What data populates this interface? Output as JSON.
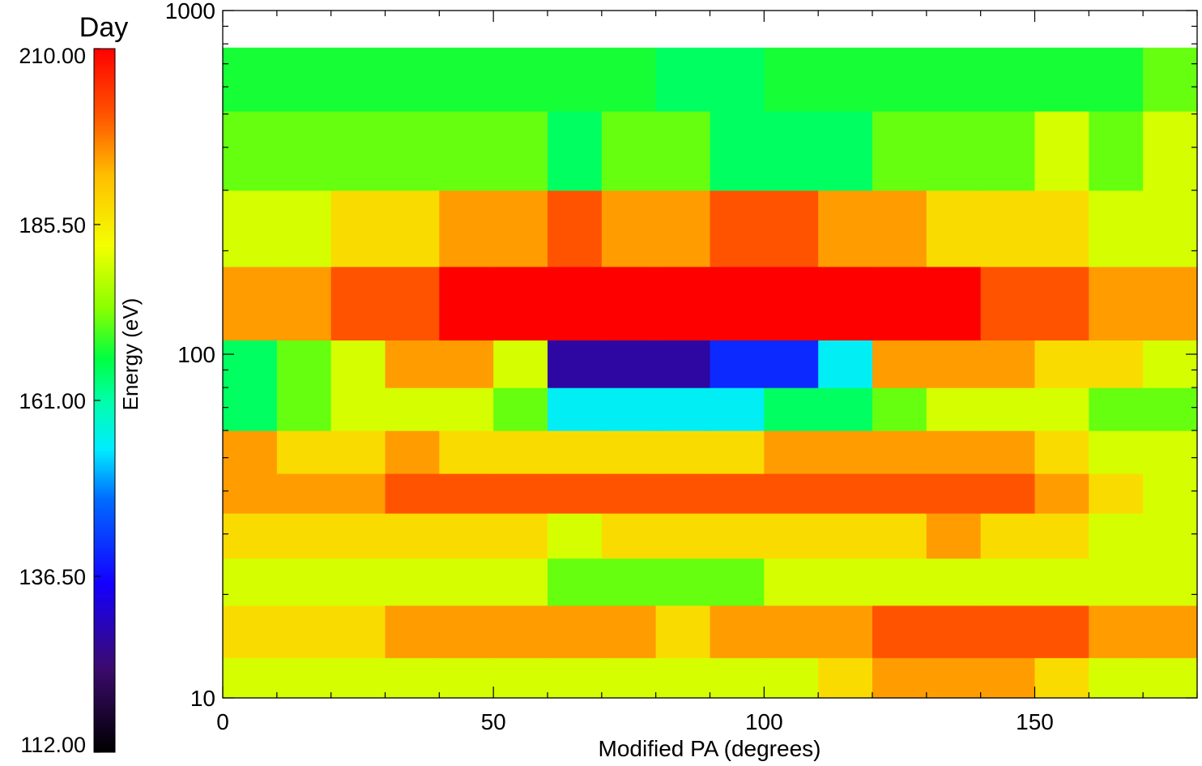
{
  "chart_data": {
    "type": "heatmap",
    "title": "Day",
    "xlabel": "Modified PA (degrees)",
    "ylabel": "",
    "colorbar_label": "Energy (eV)",
    "x_ticks": [
      "0",
      "50",
      "100",
      "150"
    ],
    "x_tick_values": [
      0,
      50,
      100,
      150
    ],
    "xlim": [
      0,
      180
    ],
    "y_ticks": [
      "1000",
      "100",
      "10"
    ],
    "y_tick_values": [
      1000,
      100,
      10
    ],
    "y_scale": "log",
    "ylim": [
      10,
      1000
    ],
    "colorbar_ticks": [
      "210.00",
      "185.50",
      "161.00",
      "136.50",
      "112.00"
    ],
    "colorbar_tick_values": [
      210,
      185.5,
      161,
      136.5,
      112
    ],
    "colorbar_range": [
      112,
      210
    ],
    "colorscale": "rainbow",
    "x_bin_edges": [
      0,
      10,
      20,
      30,
      40,
      50,
      60,
      70,
      80,
      90,
      100,
      110,
      120,
      130,
      140,
      150,
      160,
      170,
      180
    ],
    "y_bin_edges": [
      10,
      13.1,
      18.6,
      25.5,
      34.5,
      45,
      60,
      80,
      110,
      180,
      300,
      510,
      780
    ],
    "values": [
      [
        180,
        180,
        180,
        180,
        180,
        180,
        180,
        180,
        180,
        180,
        180,
        188,
        195,
        195,
        195,
        188,
        180,
        180
      ],
      [
        188,
        188,
        188,
        195,
        195,
        195,
        195,
        195,
        188,
        195,
        195,
        195,
        201,
        201,
        201,
        201,
        195,
        195
      ],
      [
        180,
        180,
        180,
        180,
        180,
        180,
        172,
        172,
        172,
        172,
        180,
        180,
        180,
        180,
        180,
        180,
        180,
        180
      ],
      [
        188,
        188,
        188,
        188,
        188,
        188,
        180,
        188,
        188,
        188,
        188,
        188,
        188,
        195,
        188,
        188,
        180,
        180
      ],
      [
        195,
        195,
        195,
        201,
        201,
        201,
        201,
        201,
        201,
        201,
        201,
        201,
        201,
        201,
        201,
        195,
        188,
        180
      ],
      [
        195,
        188,
        188,
        195,
        188,
        188,
        188,
        188,
        188,
        188,
        195,
        195,
        195,
        195,
        195,
        188,
        180,
        180
      ],
      [
        165,
        172,
        180,
        180,
        180,
        172,
        155,
        155,
        155,
        155,
        165,
        165,
        172,
        180,
        180,
        180,
        172,
        172
      ],
      [
        165,
        172,
        180,
        195,
        195,
        180,
        128,
        128,
        128,
        140,
        140,
        155,
        195,
        195,
        195,
        188,
        188,
        180
      ],
      [
        195,
        195,
        201,
        201,
        210,
        210,
        210,
        210,
        210,
        210,
        210,
        210,
        210,
        210,
        201,
        201,
        195,
        195
      ],
      [
        180,
        180,
        188,
        188,
        195,
        195,
        201,
        195,
        195,
        201,
        201,
        195,
        195,
        188,
        188,
        188,
        180,
        180
      ],
      [
        172,
        172,
        172,
        172,
        172,
        172,
        165,
        172,
        172,
        165,
        165,
        165,
        172,
        172,
        172,
        180,
        172,
        180
      ],
      [
        168,
        168,
        168,
        168,
        168,
        168,
        168,
        168,
        165,
        165,
        168,
        168,
        168,
        168,
        168,
        168,
        168,
        172
      ]
    ]
  }
}
